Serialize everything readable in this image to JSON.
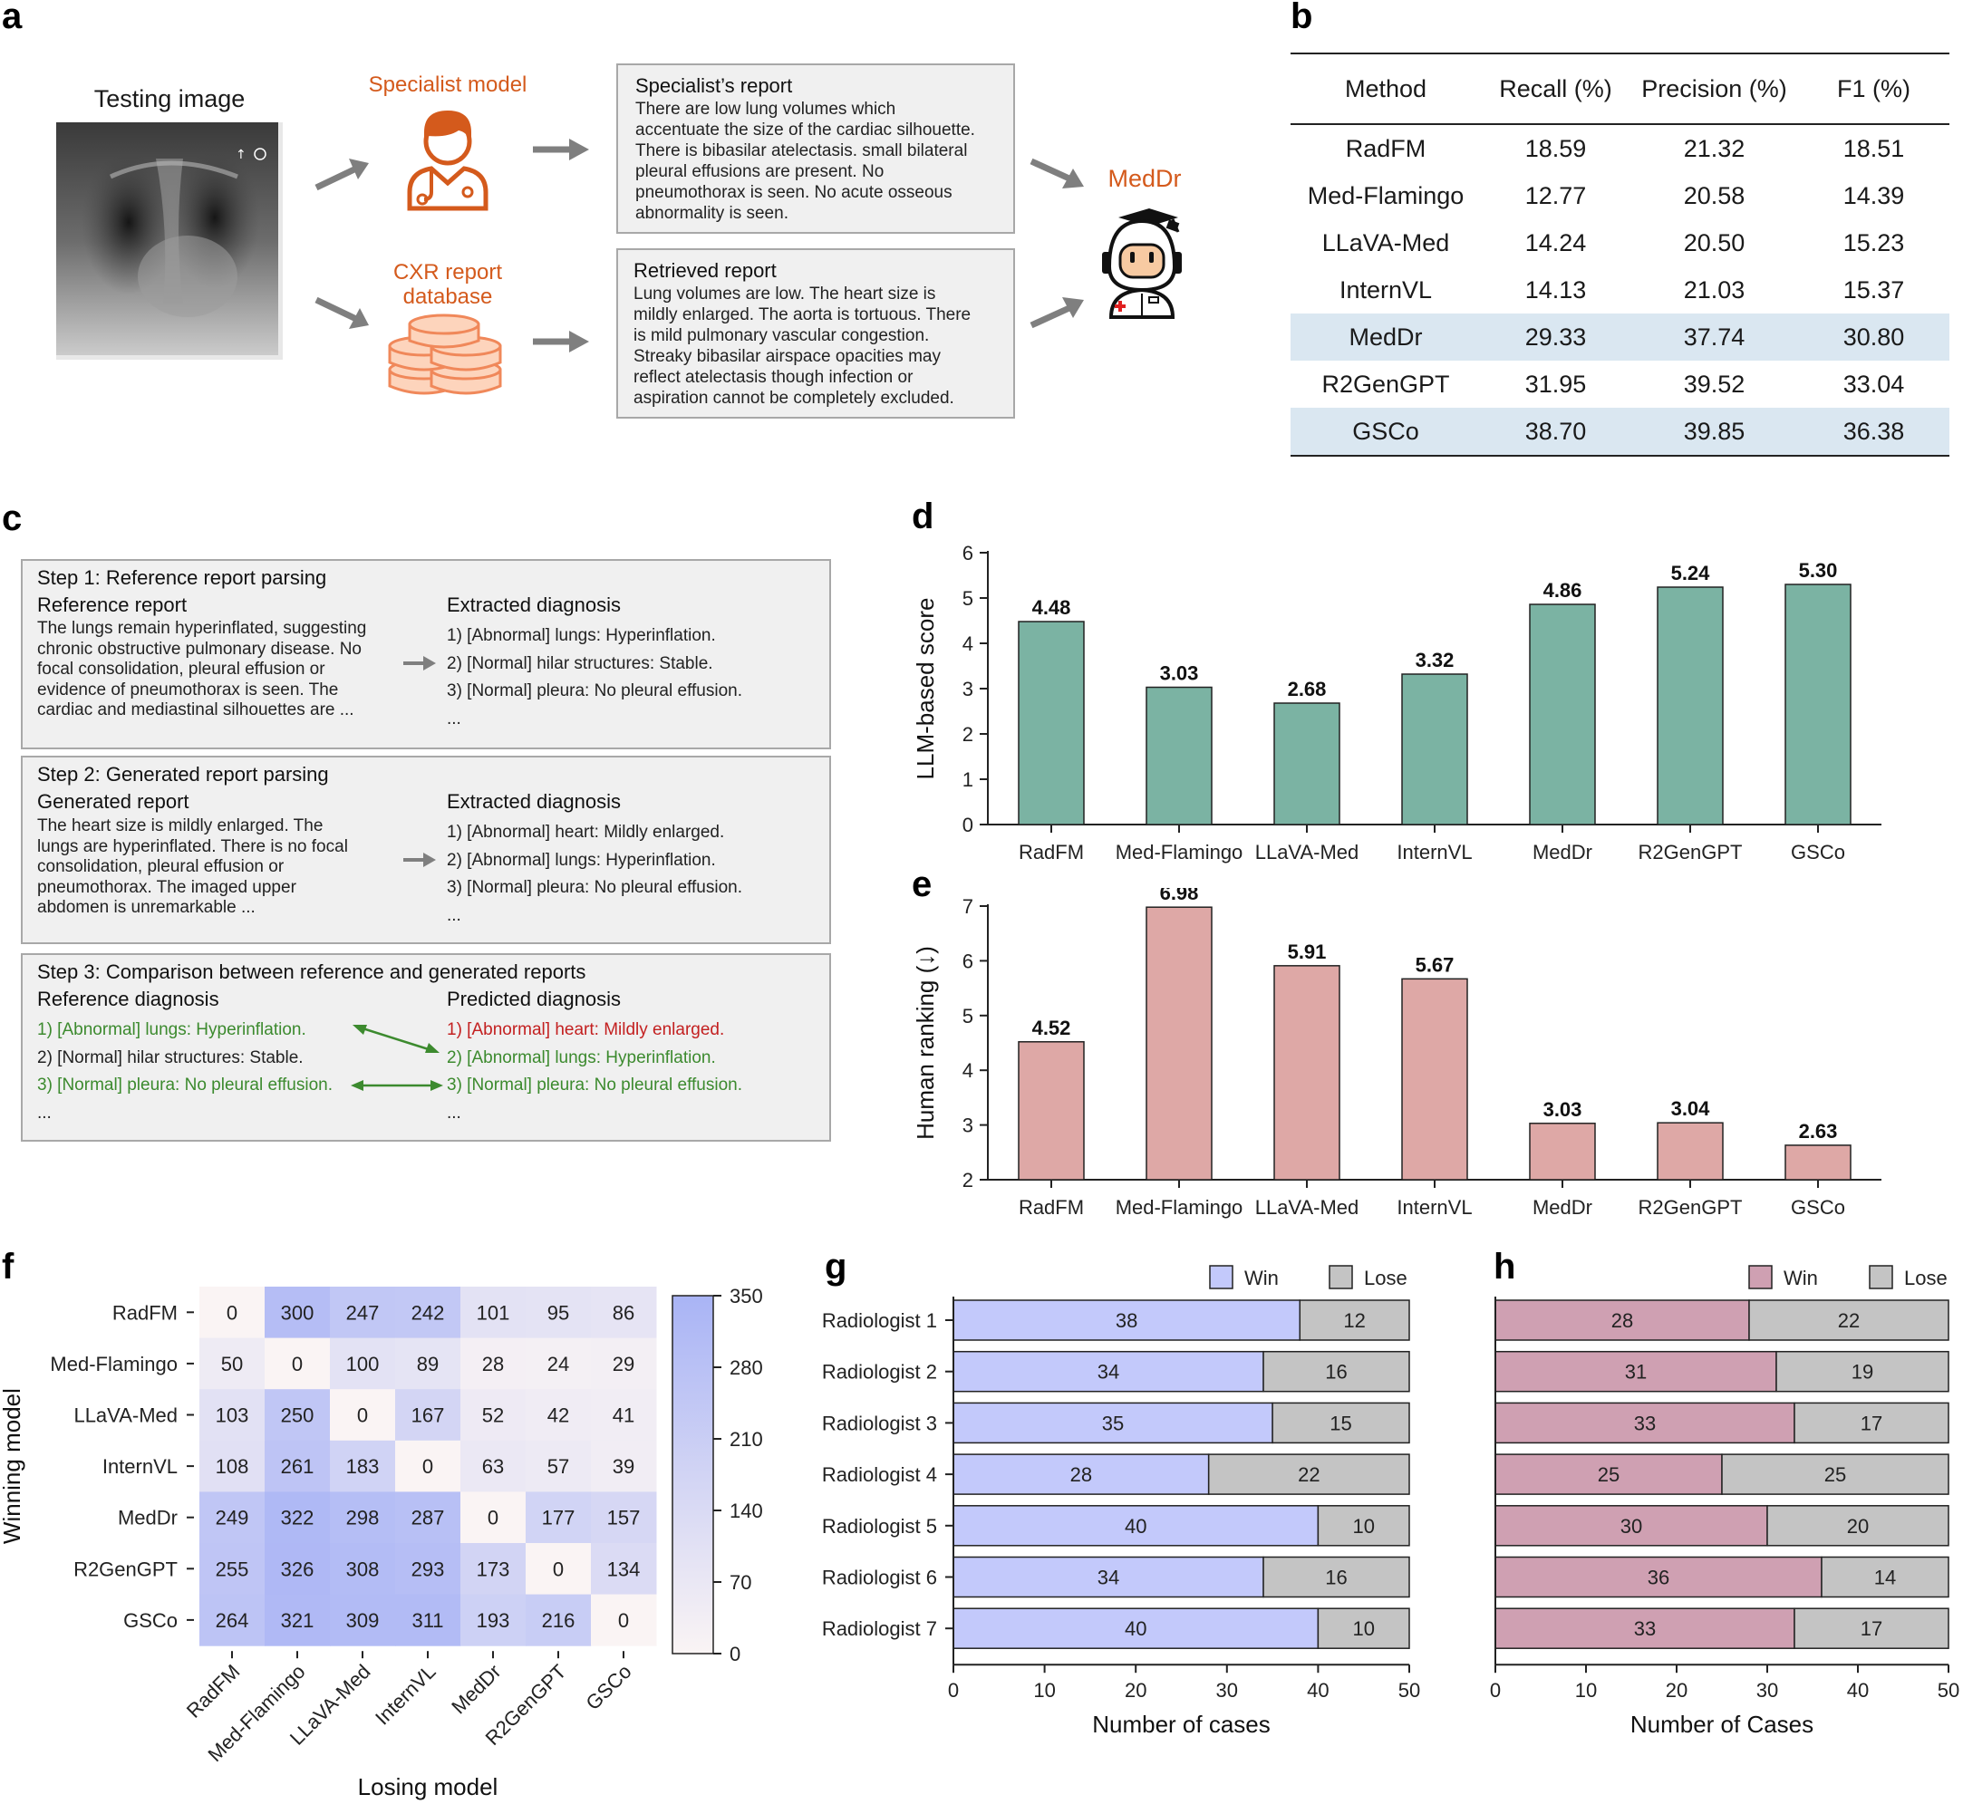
{
  "panel_labels": {
    "a": "a",
    "b": "b",
    "c": "c",
    "d": "d",
    "e": "e",
    "f": "f",
    "g": "g",
    "h": "h"
  },
  "panel_a": {
    "testing_image_label": "Testing image",
    "specialist_model_label": "Specialist model",
    "cxr_database_label": [
      "CXR report",
      "database"
    ],
    "meddr_label": "MedDr",
    "specialist_report": {
      "title": "Specialist’s report",
      "lines": [
        "There are low lung volumes which",
        "accentuate the size of the cardiac silhouette.",
        "There is bibasilar atelectasis. small bilateral",
        "pleural effusions are present. No",
        "pneumothorax is seen. No acute osseous",
        "abnormality is seen."
      ]
    },
    "retrieved_report": {
      "title": "Retrieved report",
      "lines": [
        "Lung volumes are low. The heart size is",
        "mildly enlarged. The aorta is tortuous. There",
        "is mild pulmonary vascular congestion.",
        "Streaky bibasilar airspace opacities may",
        "reflect atelectasis though infection or",
        "aspiration cannot be completely excluded."
      ]
    },
    "colors": {
      "accent": "#d45a1c",
      "arrow": "#7f7f7f"
    }
  },
  "panel_b": {
    "headers": [
      "Method",
      "Recall (%)",
      "Precision (%)",
      "F1 (%)"
    ],
    "rows": [
      {
        "method": "RadFM",
        "recall": "18.59",
        "precision": "21.32",
        "f1": "18.51",
        "highlight": false
      },
      {
        "method": "Med-Flamingo",
        "recall": "12.77",
        "precision": "20.58",
        "f1": "14.39",
        "highlight": false
      },
      {
        "method": "LLaVA-Med",
        "recall": "14.24",
        "precision": "20.50",
        "f1": "15.23",
        "highlight": false
      },
      {
        "method": "InternVL",
        "recall": "14.13",
        "precision": "21.03",
        "f1": "15.37",
        "highlight": false
      },
      {
        "method": "MedDr",
        "recall": "29.33",
        "precision": "37.74",
        "f1": "30.80",
        "highlight": true
      },
      {
        "method": "R2GenGPT",
        "recall": "31.95",
        "precision": "39.52",
        "f1": "33.04",
        "highlight": false
      },
      {
        "method": "GSCo",
        "recall": "38.70",
        "precision": "39.85",
        "f1": "36.38",
        "highlight": true
      }
    ],
    "highlight_color": "#dae7f1"
  },
  "panel_c": {
    "step1": {
      "title": "Step 1: Reference report parsing",
      "left_heading": "Reference report",
      "left_lines": [
        "The lungs remain hyperinflated, suggesting",
        "chronic obstructive pulmonary disease. No",
        "focal consolidation, pleural effusion or",
        "evidence of pneumothorax is seen. The",
        "cardiac and mediastinal silhouettes are ..."
      ],
      "right_heading": "Extracted diagnosis",
      "right_lines": [
        "1) [Abnormal] lungs: Hyperinflation.",
        "2) [Normal] hilar structures: Stable.",
        "3) [Normal] pleura: No pleural effusion.",
        "..."
      ]
    },
    "step2": {
      "title": "Step 2: Generated report parsing",
      "left_heading": "Generated report",
      "left_lines": [
        "The heart size is mildly enlarged. The",
        "lungs are hyperinflated. There is no focal",
        "consolidation, pleural effusion or",
        "pneumothorax. The imaged upper",
        "abdomen is unremarkable ..."
      ],
      "right_heading": "Extracted diagnosis",
      "right_lines": [
        "1) [Abnormal] heart: Mildly enlarged.",
        "2) [Abnormal] lungs: Hyperinflation.",
        "3) [Normal] pleura: No pleural effusion.",
        "..."
      ]
    },
    "step3": {
      "title": "Step 3: Comparison between reference and generated reports",
      "left_heading": "Reference diagnosis",
      "left_lines": [
        "1) [Abnormal] lungs: Hyperinflation.",
        "2) [Normal] hilar structures: Stable.",
        "3) [Normal] pleura: No pleural effusion.",
        "..."
      ],
      "right_heading": "Predicted diagnosis",
      "right_lines": [
        "1) [Abnormal] heart: Mildly enlarged.",
        "2) [Abnormal] lungs: Hyperinflation.",
        "3) [Normal] pleura: No pleural effusion.",
        "..."
      ],
      "colors": {
        "match": "#3c8a2e",
        "mismatch": "#c32020"
      }
    }
  },
  "chart_data": [
    {
      "id": "d",
      "type": "bar",
      "categories": [
        "RadFM",
        "Med-Flamingo",
        "LLaVA-Med",
        "InternVL",
        "MedDr",
        "R2GenGPT",
        "GSCo"
      ],
      "values": [
        4.48,
        3.03,
        2.68,
        3.32,
        4.86,
        5.24,
        5.3
      ],
      "value_labels": [
        "4.48",
        "3.03",
        "2.68",
        "3.32",
        "4.86",
        "5.24",
        "5.30"
      ],
      "ylabel": "LLM-based score",
      "ylim": [
        0,
        6
      ],
      "yticks": [
        "0",
        "1",
        "2",
        "3",
        "4",
        "5",
        "6"
      ],
      "color": "#7bb3a3"
    },
    {
      "id": "e",
      "type": "bar",
      "categories": [
        "RadFM",
        "Med-Flamingo",
        "LLaVA-Med",
        "InternVL",
        "MedDr",
        "R2GenGPT",
        "GSCo"
      ],
      "values": [
        4.52,
        6.98,
        5.91,
        5.67,
        3.03,
        3.04,
        2.63
      ],
      "value_labels": [
        "4.52",
        "6.98",
        "5.91",
        "5.67",
        "3.03",
        "3.04",
        "2.63"
      ],
      "ylabel": "Human ranking (↓)",
      "ylim": [
        2,
        7
      ],
      "yticks": [
        "2",
        "3",
        "4",
        "5",
        "6",
        "7"
      ],
      "color": "#dea8a6"
    },
    {
      "id": "f",
      "type": "heatmap",
      "rows": [
        "RadFM",
        "Med-Flamingo",
        "LLaVA-Med",
        "InternVL",
        "MedDr",
        "R2GenGPT",
        "GSCo"
      ],
      "cols": [
        "RadFM",
        "Med-Flamingo",
        "LLaVA-Med",
        "InternVL",
        "MedDr",
        "R2GenGPT",
        "GSCo"
      ],
      "values": [
        [
          0,
          300,
          247,
          242,
          101,
          95,
          86
        ],
        [
          50,
          0,
          100,
          89,
          28,
          24,
          29
        ],
        [
          103,
          250,
          0,
          167,
          52,
          42,
          41
        ],
        [
          108,
          261,
          183,
          0,
          63,
          57,
          39
        ],
        [
          249,
          322,
          298,
          287,
          0,
          177,
          157
        ],
        [
          255,
          326,
          308,
          293,
          173,
          0,
          134
        ],
        [
          264,
          321,
          309,
          311,
          193,
          216,
          0
        ]
      ],
      "ylabel": "Winning model",
      "xlabel": "Losing model",
      "colorbar_ticks": [
        "350",
        "280",
        "210",
        "140",
        "70",
        "0"
      ],
      "range": [
        0,
        350
      ],
      "color_low": "#faf4f4",
      "color_high": "#a9b4f5"
    },
    {
      "id": "g",
      "type": "bar",
      "orientation": "horizontal",
      "stacked": true,
      "categories": [
        "Radiologist 1",
        "Radiologist 2",
        "Radiologist 3",
        "Radiologist 4",
        "Radiologist 5",
        "Radiologist 6",
        "Radiologist 7"
      ],
      "series": [
        {
          "name": "Win",
          "values": [
            38,
            34,
            35,
            28,
            40,
            34,
            40
          ],
          "color": "#c3c9fb"
        },
        {
          "name": "Lose",
          "values": [
            12,
            16,
            15,
            22,
            10,
            16,
            10
          ],
          "color": "#c4c4c4"
        }
      ],
      "xlabel": "Number of cases",
      "xlim": [
        0,
        50
      ],
      "xticks": [
        "0",
        "10",
        "20",
        "30",
        "40",
        "50"
      ],
      "legend": "top-right"
    },
    {
      "id": "h",
      "type": "bar",
      "orientation": "horizontal",
      "stacked": true,
      "categories": [
        "Radiologist 1",
        "Radiologist 2",
        "Radiologist 3",
        "Radiologist 4",
        "Radiologist 5",
        "Radiologist 6",
        "Radiologist 7"
      ],
      "series": [
        {
          "name": "Win",
          "values": [
            28,
            31,
            33,
            25,
            30,
            36,
            33
          ],
          "color": "#cfa0b2"
        },
        {
          "name": "Lose",
          "values": [
            22,
            19,
            17,
            25,
            20,
            14,
            17
          ],
          "color": "#c4c4c4"
        }
      ],
      "xlabel": "Number of Cases",
      "xlim": [
        0,
        50
      ],
      "xticks": [
        "0",
        "10",
        "20",
        "30",
        "40",
        "50"
      ],
      "legend": "top-right"
    }
  ]
}
